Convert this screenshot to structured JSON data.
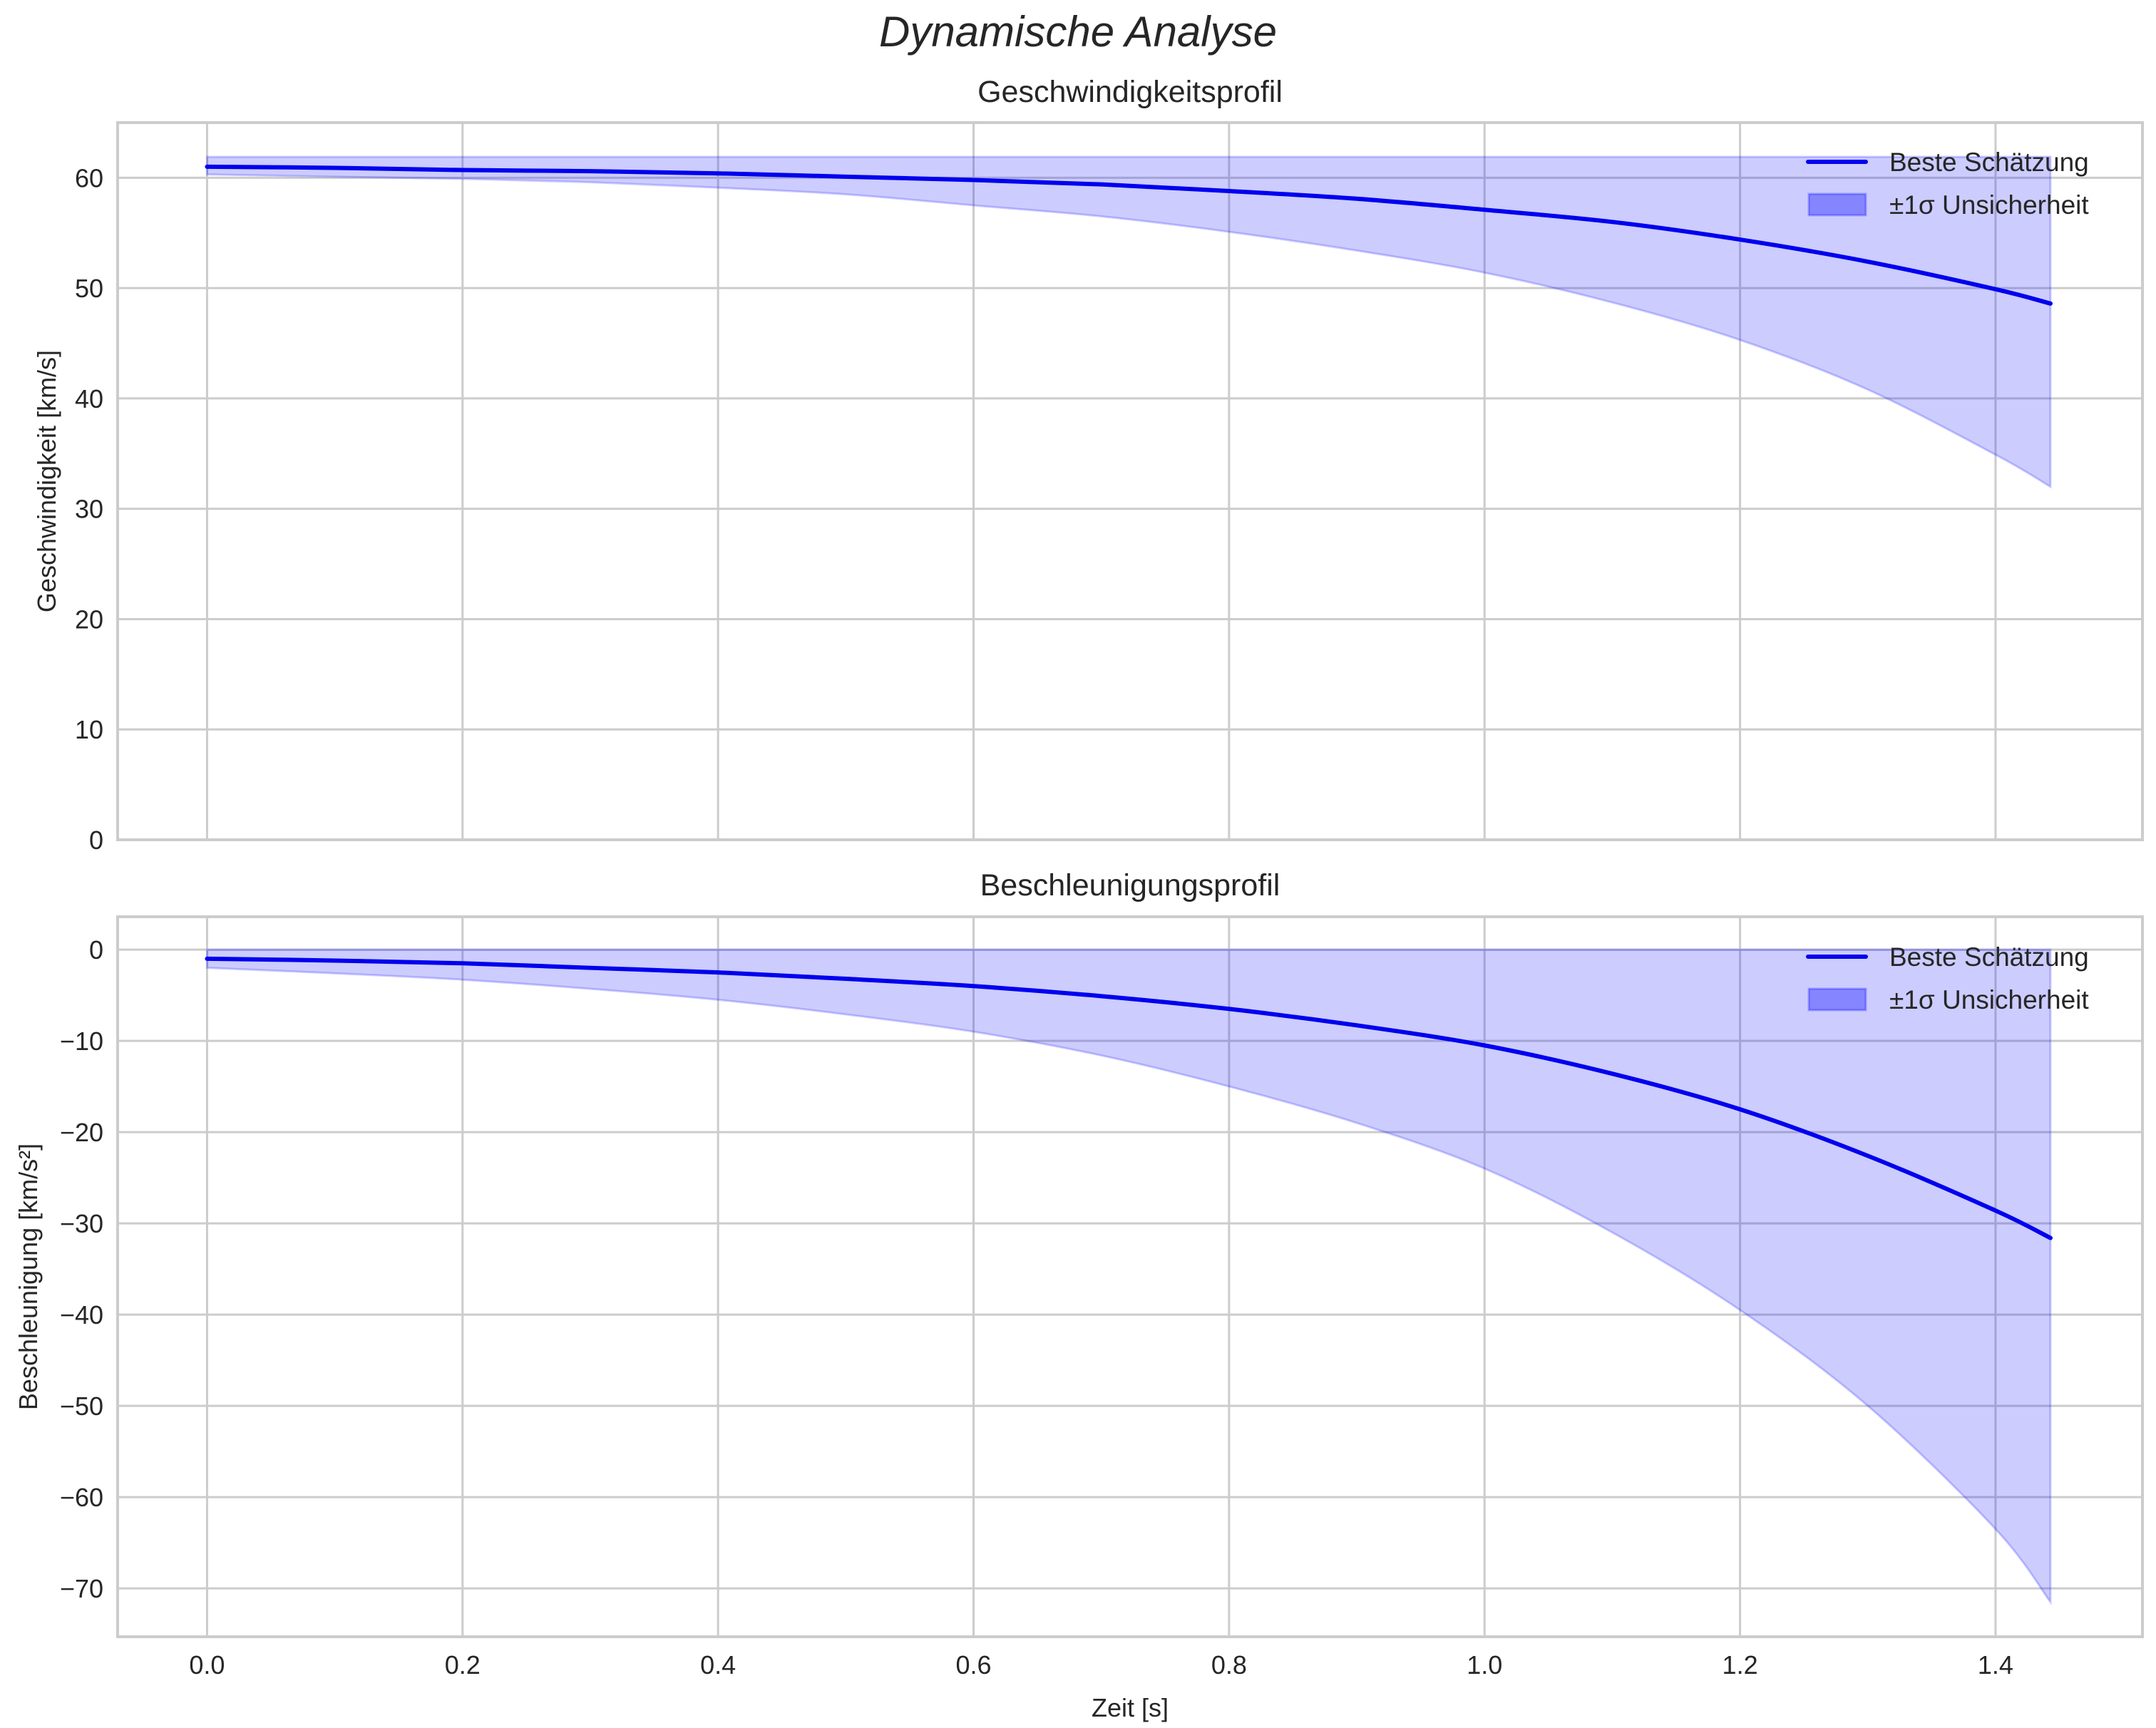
{
  "figure": {
    "suptitle": "Dynamische Analyse"
  },
  "colors": {
    "line": "#0000ee",
    "band_fill": "#0000ff",
    "band_alpha": 0.2,
    "grid": "#cccccc",
    "spine": "#cccccc",
    "text": "#262626"
  },
  "chart_data": [
    {
      "type": "line",
      "title": "Geschwindigkeitsprofil",
      "xlabel": "",
      "ylabel": "Geschwindigkeit [km/s]",
      "xlim": [
        -0.07,
        1.515
      ],
      "ylim": [
        0,
        65
      ],
      "xticks": [
        0.0,
        0.2,
        0.4,
        0.6,
        0.8,
        1.0,
        1.2,
        1.4
      ],
      "xtick_labels": [
        "",
        "",
        "",
        "",
        "",
        "",
        "",
        ""
      ],
      "yticks": [
        0,
        10,
        20,
        30,
        40,
        50,
        60
      ],
      "ytick_labels": [
        "0",
        "10",
        "20",
        "30",
        "40",
        "50",
        "60"
      ],
      "grid": true,
      "legend_position": "upper right",
      "legend": [
        "Beste Schätzung",
        "±1σ Unsicherheit"
      ],
      "x": [
        0.0,
        0.1,
        0.2,
        0.3,
        0.4,
        0.5,
        0.6,
        0.7,
        0.8,
        0.9,
        1.0,
        1.1,
        1.2,
        1.3,
        1.4,
        1.443
      ],
      "series": [
        {
          "name": "Beste Schätzung",
          "values": [
            61.0,
            60.9,
            60.7,
            60.6,
            60.4,
            60.1,
            59.8,
            59.4,
            58.8,
            58.1,
            57.1,
            56.0,
            54.4,
            52.4,
            49.9,
            48.6
          ]
        },
        {
          "name": "±1σ Unsicherheit (oben)",
          "values": [
            61.9,
            61.9,
            61.9,
            61.9,
            61.9,
            61.9,
            61.9,
            61.9,
            61.9,
            61.9,
            61.9,
            61.9,
            61.9,
            61.9,
            61.9,
            61.9
          ]
        },
        {
          "name": "±1σ Unsicherheit (unten)",
          "values": [
            60.3,
            60.1,
            59.9,
            59.6,
            59.1,
            58.5,
            57.5,
            56.5,
            55.1,
            53.4,
            51.4,
            48.7,
            45.3,
            40.8,
            34.9,
            32.0
          ]
        }
      ]
    },
    {
      "type": "line",
      "title": "Beschleunigungsprofil",
      "xlabel": "Zeit [s]",
      "ylabel": "Beschleunigung [km/s²]",
      "xlim": [
        -0.07,
        1.515
      ],
      "ylim": [
        -75.3,
        3.6
      ],
      "xticks": [
        0.0,
        0.2,
        0.4,
        0.6,
        0.8,
        1.0,
        1.2,
        1.4
      ],
      "xtick_labels": [
        "0.0",
        "0.2",
        "0.4",
        "0.6",
        "0.8",
        "1.0",
        "1.2",
        "1.4"
      ],
      "yticks": [
        0,
        -10,
        -20,
        -30,
        -40,
        -50,
        -60,
        -70
      ],
      "ytick_labels": [
        "0",
        "−10",
        "−20",
        "−30",
        "−40",
        "−50",
        "−60",
        "−70"
      ],
      "grid": true,
      "legend_position": "upper right",
      "legend": [
        "Beste Schätzung",
        "±1σ Unsicherheit"
      ],
      "x": [
        0.0,
        0.1,
        0.2,
        0.3,
        0.4,
        0.5,
        0.6,
        0.7,
        0.8,
        0.9,
        1.0,
        1.1,
        1.2,
        1.3,
        1.4,
        1.443
      ],
      "series": [
        {
          "name": "Beste Schätzung",
          "values": [
            -1.0,
            -1.2,
            -1.5,
            -2.0,
            -2.5,
            -3.2,
            -4.0,
            -5.1,
            -6.5,
            -8.3,
            -10.5,
            -13.6,
            -17.5,
            -22.6,
            -28.6,
            -31.6
          ]
        },
        {
          "name": "±1σ Unsicherheit (oben)",
          "values": [
            0.0,
            0.0,
            0.0,
            0.0,
            0.0,
            0.0,
            0.0,
            0.0,
            0.0,
            0.0,
            0.0,
            0.0,
            0.0,
            0.0,
            0.0,
            0.0
          ]
        },
        {
          "name": "±1σ Unsicherheit (unten)",
          "values": [
            -2.0,
            -2.6,
            -3.3,
            -4.3,
            -5.5,
            -7.1,
            -9.0,
            -11.6,
            -15.0,
            -19.0,
            -24.0,
            -31.0,
            -39.5,
            -50.0,
            -63.5,
            -71.5
          ]
        }
      ]
    }
  ]
}
